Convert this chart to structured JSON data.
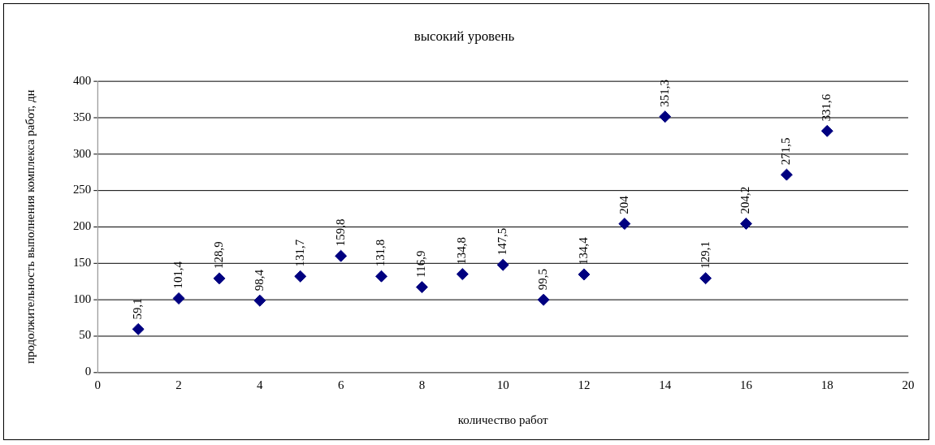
{
  "chart_data": {
    "type": "scatter",
    "title": "высокий уровень",
    "xlabel": "количество работ",
    "ylabel": "продолжительность выполнения комплекса работ, дн",
    "x": [
      1,
      2,
      3,
      4,
      5,
      6,
      7,
      8,
      9,
      10,
      11,
      12,
      13,
      14,
      15,
      16,
      17,
      18
    ],
    "series": [
      {
        "color": "#000080",
        "values": [
          59.1,
          101.4,
          128.9,
          98.4,
          131.7,
          159.8,
          131.8,
          116.9,
          134.8,
          147.5,
          99.5,
          134.4,
          204,
          351.3,
          129.1,
          204.2,
          271.5,
          331.6
        ],
        "value_labels": [
          "59,1",
          "101,4",
          "128,9",
          "98,4",
          "131,7",
          "159,8",
          "131,8",
          "116,9",
          "134,8",
          "147,5",
          "99,5",
          "134,4",
          "204",
          "351,3",
          "129,1",
          "204,2",
          "271,5",
          "331,6"
        ]
      }
    ],
    "xlim": [
      0,
      20
    ],
    "xticks": [
      0,
      2,
      4,
      6,
      8,
      10,
      12,
      14,
      16,
      18,
      20
    ],
    "ylim": [
      0,
      400
    ],
    "yticks": [
      0,
      50,
      100,
      150,
      200,
      250,
      300,
      350,
      400
    ],
    "grid": "y",
    "legend": false,
    "marker": "diamond"
  }
}
